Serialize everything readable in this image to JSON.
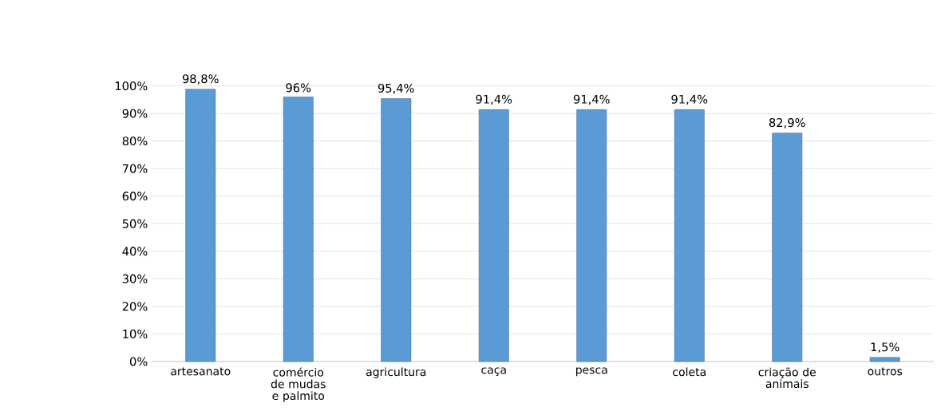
{
  "chart_data": {
    "type": "bar",
    "categories": [
      "artesanato",
      "comércio de mudas e palmito",
      "agricultura",
      "caça",
      "pesca",
      "coleta",
      "criação de animais",
      "outros"
    ],
    "values": [
      98.8,
      96,
      95.4,
      91.4,
      91.4,
      91.4,
      82.9,
      1.5
    ],
    "value_labels": [
      "98,8%",
      "96%",
      "95,4%",
      "91,4%",
      "91,4%",
      "91,4%",
      "82,9%",
      "1,5%"
    ],
    "color": "#5b9bd5",
    "ylim": [
      0,
      100
    ],
    "yticks": [
      {
        "value": 0,
        "label": "0%"
      },
      {
        "value": 10,
        "label": "10%"
      },
      {
        "value": 20,
        "label": "20%"
      },
      {
        "value": 30,
        "label": "30%"
      },
      {
        "value": 40,
        "label": "40%"
      },
      {
        "value": 50,
        "label": "50%"
      },
      {
        "value": 60,
        "label": "60%"
      },
      {
        "value": 70,
        "label": "70%"
      },
      {
        "value": 80,
        "label": "80%"
      },
      {
        "value": 90,
        "label": "90%"
      },
      {
        "value": 100,
        "label": "100%"
      }
    ],
    "grid": "y"
  }
}
